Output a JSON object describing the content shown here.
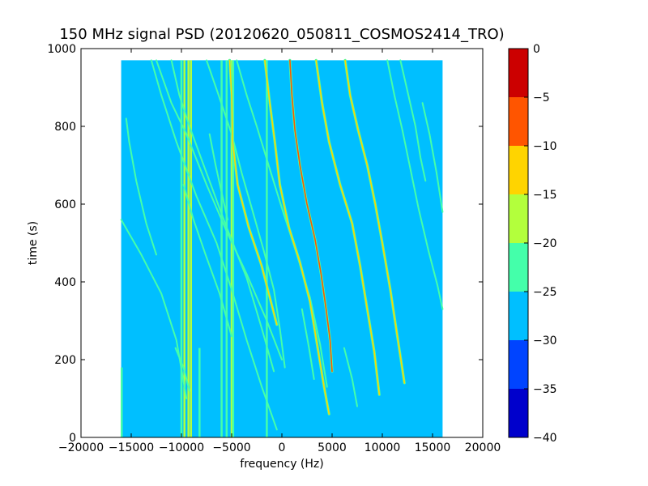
{
  "chart_data": {
    "type": "heatmap",
    "title": "150 MHz signal PSD (20120620_050811_COSMOS2414_TRO)",
    "xlabel": "frequency (Hz)",
    "ylabel": "time (s)",
    "xlim": [
      -20000,
      20000
    ],
    "ylim": [
      0,
      1000
    ],
    "xticks": [
      -20000,
      -15000,
      -10000,
      -5000,
      0,
      5000,
      10000,
      15000,
      20000
    ],
    "xtick_labels": [
      "−20000",
      "−15000",
      "−10000",
      "−5000",
      "0",
      "5000",
      "10000",
      "15000",
      "20000"
    ],
    "yticks": [
      0,
      200,
      400,
      600,
      800,
      1000
    ],
    "ytick_labels": [
      "0",
      "200",
      "400",
      "600",
      "800",
      "1000"
    ],
    "data_extent": {
      "freq_min": -16000,
      "freq_max": 16000,
      "time_min": 0,
      "time_max": 970
    },
    "background_level": -28,
    "colorbar": {
      "range": [
        -40,
        0
      ],
      "ticks": [
        0,
        -5,
        -10,
        -15,
        -20,
        -25,
        -30,
        -35,
        -40
      ],
      "tick_labels": [
        "0",
        "−5",
        "−10",
        "−15",
        "−20",
        "−25",
        "−30",
        "−35",
        "−40"
      ],
      "bands": [
        {
          "from": -40,
          "to": -35,
          "color": "#0000cc"
        },
        {
          "from": -35,
          "to": -30,
          "color": "#0044ff"
        },
        {
          "from": -30,
          "to": -25,
          "color": "#00bfff"
        },
        {
          "from": -25,
          "to": -20,
          "color": "#44ffaa"
        },
        {
          "from": -20,
          "to": -15,
          "color": "#b3ff3c"
        },
        {
          "from": -15,
          "to": -10,
          "color": "#ffd400"
        },
        {
          "from": -10,
          "to": -5,
          "color": "#ff5500"
        },
        {
          "from": -5,
          "to": 0,
          "color": "#cc0000"
        }
      ]
    },
    "vertical_lines": [
      {
        "freq": -15950,
        "t0": 0,
        "t1": 180,
        "level": -23
      },
      {
        "freq": -10000,
        "t0": 0,
        "t1": 970,
        "level": -21
      },
      {
        "freq": -9700,
        "t0": 0,
        "t1": 970,
        "level": -18
      },
      {
        "freq": -9300,
        "t0": 0,
        "t1": 970,
        "level": -18
      },
      {
        "freq": -9050,
        "t0": 0,
        "t1": 970,
        "level": -18
      },
      {
        "freq": -8200,
        "t0": 0,
        "t1": 230,
        "level": -22
      },
      {
        "freq": -6000,
        "t0": 0,
        "t1": 970,
        "level": -23
      },
      {
        "freq": -5500,
        "t0": 0,
        "t1": 970,
        "level": -23
      },
      {
        "freq": -5000,
        "t0": 0,
        "t1": 970,
        "level": -18
      },
      {
        "freq": -4850,
        "t0": 0,
        "t1": 970,
        "level": -23
      },
      {
        "freq": -1500,
        "t0": 0,
        "t1": 970,
        "level": -21
      }
    ],
    "series": [
      {
        "level": -23,
        "points": [
          [
            -16000,
            560
          ],
          [
            -14000,
            470
          ],
          [
            -12000,
            370
          ],
          [
            -10500,
            250
          ],
          [
            -9500,
            100
          ]
        ]
      },
      {
        "level": -23,
        "points": [
          [
            -15500,
            820
          ],
          [
            -15200,
            760
          ],
          [
            -14500,
            660
          ],
          [
            -13500,
            550
          ],
          [
            -12500,
            470
          ]
        ]
      },
      {
        "level": -21,
        "points": [
          [
            -13000,
            970
          ],
          [
            -12000,
            880
          ],
          [
            -10500,
            760
          ],
          [
            -8500,
            620
          ],
          [
            -6500,
            500
          ],
          [
            -5000,
            380
          ],
          [
            -3500,
            250
          ],
          [
            -2000,
            130
          ],
          [
            -500,
            20
          ]
        ]
      },
      {
        "level": -23,
        "points": [
          [
            -12500,
            970
          ],
          [
            -11000,
            860
          ],
          [
            -9500,
            780
          ],
          [
            -7500,
            650
          ],
          [
            -5500,
            530
          ],
          [
            -3500,
            420
          ],
          [
            -1500,
            300
          ],
          [
            0,
            200
          ]
        ]
      },
      {
        "level": -21,
        "points": [
          [
            -11000,
            970
          ],
          [
            -10200,
            880
          ],
          [
            -9200,
            800
          ],
          [
            -7500,
            680
          ],
          [
            -5500,
            540
          ],
          [
            -3500,
            410
          ],
          [
            -2000,
            280
          ],
          [
            -800,
            170
          ]
        ]
      },
      {
        "level": -21,
        "points": [
          [
            -7500,
            970
          ],
          [
            -6300,
            880
          ],
          [
            -5000,
            780
          ],
          [
            -4000,
            680
          ],
          [
            -3000,
            590
          ],
          [
            -1800,
            480
          ],
          [
            -800,
            380
          ],
          [
            -200,
            280
          ],
          [
            300,
            180
          ]
        ]
      },
      {
        "level": -14,
        "points": [
          [
            -5200,
            970
          ],
          [
            -5000,
            880
          ],
          [
            -4900,
            760
          ],
          [
            -4400,
            650
          ],
          [
            -3300,
            540
          ],
          [
            -2000,
            440
          ],
          [
            -1200,
            360
          ],
          [
            -500,
            290
          ]
        ]
      },
      {
        "level": -21,
        "points": [
          [
            -4500,
            970
          ],
          [
            -3500,
            880
          ],
          [
            -2500,
            800
          ],
          [
            -1200,
            690
          ],
          [
            0,
            590
          ],
          [
            1500,
            470
          ],
          [
            2800,
            360
          ],
          [
            3800,
            240
          ],
          [
            4500,
            130
          ]
        ]
      },
      {
        "level": -14,
        "points": [
          [
            -1700,
            970
          ],
          [
            -1200,
            860
          ],
          [
            -700,
            760
          ],
          [
            -200,
            650
          ],
          [
            700,
            540
          ],
          [
            1800,
            450
          ],
          [
            2800,
            350
          ],
          [
            3500,
            240
          ],
          [
            4200,
            130
          ],
          [
            4700,
            60
          ]
        ]
      },
      {
        "level": -7,
        "points": [
          [
            800,
            970
          ],
          [
            1000,
            880
          ],
          [
            1300,
            790
          ],
          [
            1800,
            700
          ],
          [
            2500,
            600
          ],
          [
            3300,
            510
          ],
          [
            3900,
            420
          ],
          [
            4400,
            330
          ],
          [
            4800,
            250
          ],
          [
            5000,
            170
          ]
        ]
      },
      {
        "level": -14,
        "points": [
          [
            3400,
            970
          ],
          [
            4000,
            860
          ],
          [
            4700,
            760
          ],
          [
            5800,
            650
          ],
          [
            7000,
            550
          ],
          [
            7800,
            440
          ],
          [
            8500,
            330
          ],
          [
            9200,
            220
          ],
          [
            9700,
            110
          ]
        ]
      },
      {
        "level": -14,
        "points": [
          [
            6300,
            970
          ],
          [
            6800,
            880
          ],
          [
            7600,
            790
          ],
          [
            8500,
            700
          ],
          [
            9300,
            600
          ],
          [
            10000,
            500
          ],
          [
            10800,
            380
          ],
          [
            11500,
            260
          ],
          [
            12200,
            140
          ]
        ]
      },
      {
        "level": -21,
        "points": [
          [
            10500,
            970
          ],
          [
            11200,
            880
          ],
          [
            12000,
            790
          ],
          [
            12800,
            690
          ],
          [
            13600,
            590
          ],
          [
            14600,
            480
          ],
          [
            15500,
            390
          ],
          [
            16000,
            330
          ]
        ]
      },
      {
        "level": -21,
        "points": [
          [
            11800,
            970
          ],
          [
            12600,
            880
          ],
          [
            13300,
            800
          ],
          [
            13800,
            720
          ],
          [
            14300,
            660
          ]
        ]
      },
      {
        "level": -21,
        "points": [
          [
            14000,
            860
          ],
          [
            14700,
            780
          ],
          [
            15400,
            680
          ],
          [
            16000,
            580
          ]
        ]
      },
      {
        "level": -21,
        "points": [
          [
            -7200,
            780
          ],
          [
            -6600,
            700
          ],
          [
            -6000,
            630
          ],
          [
            -5400,
            560
          ]
        ]
      },
      {
        "level": -23,
        "points": [
          [
            -9800,
            650
          ],
          [
            -8800,
            560
          ],
          [
            -7600,
            470
          ],
          [
            -6200,
            370
          ],
          [
            -5000,
            260
          ]
        ]
      },
      {
        "level": -23,
        "points": [
          [
            -10600,
            230
          ],
          [
            -9800,
            180
          ],
          [
            -9200,
            120
          ]
        ]
      },
      {
        "level": -23,
        "points": [
          [
            2000,
            330
          ],
          [
            2700,
            230
          ],
          [
            3200,
            150
          ]
        ]
      },
      {
        "level": -23,
        "points": [
          [
            6200,
            230
          ],
          [
            7000,
            150
          ],
          [
            7500,
            80
          ]
        ]
      }
    ]
  }
}
